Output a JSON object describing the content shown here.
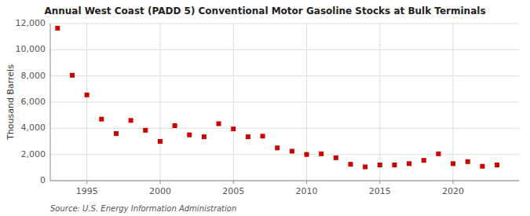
{
  "chart_data": {
    "type": "scatter",
    "title": "Annual West Coast (PADD 5) Conventional Motor Gasoline Stocks at Bulk Terminals",
    "y_label": "Thousand Barrels",
    "annotations": [
      "Source: U.S. Energy Information Administration"
    ],
    "x": [
      1993,
      1994,
      1995,
      1996,
      1997,
      1998,
      1999,
      2000,
      2001,
      2002,
      2003,
      2004,
      2005,
      2006,
      2007,
      2008,
      2009,
      2010,
      2011,
      2012,
      2013,
      2014,
      2015,
      2016,
      2017,
      2018,
      2019,
      2020,
      2021,
      2022,
      2023
    ],
    "values": [
      11650,
      8050,
      6550,
      4700,
      3600,
      4600,
      3850,
      3000,
      4200,
      3500,
      3350,
      4350,
      3950,
      3350,
      3400,
      2500,
      2250,
      2000,
      2050,
      1750,
      1250,
      1050,
      1200,
      1200,
      1300,
      1550,
      2050,
      1300,
      1450,
      1100,
      1200
    ],
    "color": "#cc0000",
    "marker": "square",
    "xlim": [
      1992.5,
      2024.5
    ],
    "xticks": [
      1995,
      2000,
      2005,
      2010,
      2015,
      2020
    ],
    "ylim": [
      0,
      12000
    ],
    "yticks": [
      0,
      {
        "value": 2000,
        "label": "2,000"
      },
      {
        "value": 4000,
        "label": "4,000"
      },
      {
        "value": 6000,
        "label": "6,000"
      },
      {
        "value": 8000,
        "label": "8,000"
      },
      {
        "value": 10000,
        "label": "10,000"
      },
      {
        "value": 12000,
        "label": "12,000"
      }
    ],
    "grid": true
  }
}
